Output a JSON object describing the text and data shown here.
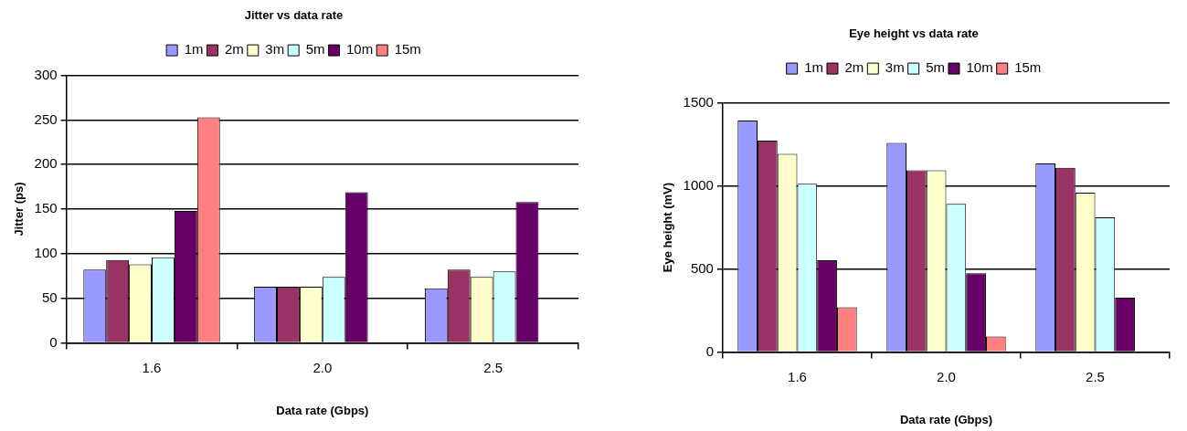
{
  "chart_data": [
    {
      "type": "bar",
      "title": "Jitter vs data rate",
      "xlabel": "Data rate (Gbps)",
      "ylabel": "Jitter (ps)",
      "categories": [
        "1.6",
        "2.0",
        "2.5"
      ],
      "series": [
        {
          "name": "1m",
          "color": "#9999ff",
          "values": [
            82,
            63,
            61
          ]
        },
        {
          "name": "2m",
          "color": "#993366",
          "values": [
            93,
            63,
            82
          ]
        },
        {
          "name": "3m",
          "color": "#ffffcc",
          "values": [
            88,
            63,
            74
          ]
        },
        {
          "name": "5m",
          "color": "#ccffff",
          "values": [
            96,
            74,
            80
          ]
        },
        {
          "name": "10m",
          "color": "#660066",
          "values": [
            148,
            169,
            158
          ]
        },
        {
          "name": "15m",
          "color": "#ff8080",
          "values": [
            253,
            null,
            null
          ]
        }
      ],
      "ylim": [
        0,
        300
      ],
      "yticks": [
        0,
        50,
        100,
        150,
        200,
        250,
        300
      ],
      "grid": "y",
      "legend": "top"
    },
    {
      "type": "bar",
      "title": "Eye height vs data rate",
      "xlabel": "Data rate (Gbps)",
      "ylabel": "Eye height (mV)",
      "categories": [
        "1.6",
        "2.0",
        "2.5"
      ],
      "series": [
        {
          "name": "1m",
          "color": "#9999ff",
          "values": [
            1394,
            1259,
            1135
          ]
        },
        {
          "name": "2m",
          "color": "#993366",
          "values": [
            1272,
            1093,
            1109
          ]
        },
        {
          "name": "3m",
          "color": "#ffffcc",
          "values": [
            1192,
            1093,
            959
          ]
        },
        {
          "name": "5m",
          "color": "#ccffff",
          "values": [
            1013,
            891,
            811
          ]
        },
        {
          "name": "10m",
          "color": "#660066",
          "values": [
            552,
            474,
            326
          ]
        },
        {
          "name": "15m",
          "color": "#ff8080",
          "values": [
            269,
            93,
            null
          ]
        }
      ],
      "ylim": [
        0,
        1500
      ],
      "yticks": [
        0,
        500,
        1000,
        1500
      ],
      "grid": "y",
      "legend": "top"
    }
  ]
}
